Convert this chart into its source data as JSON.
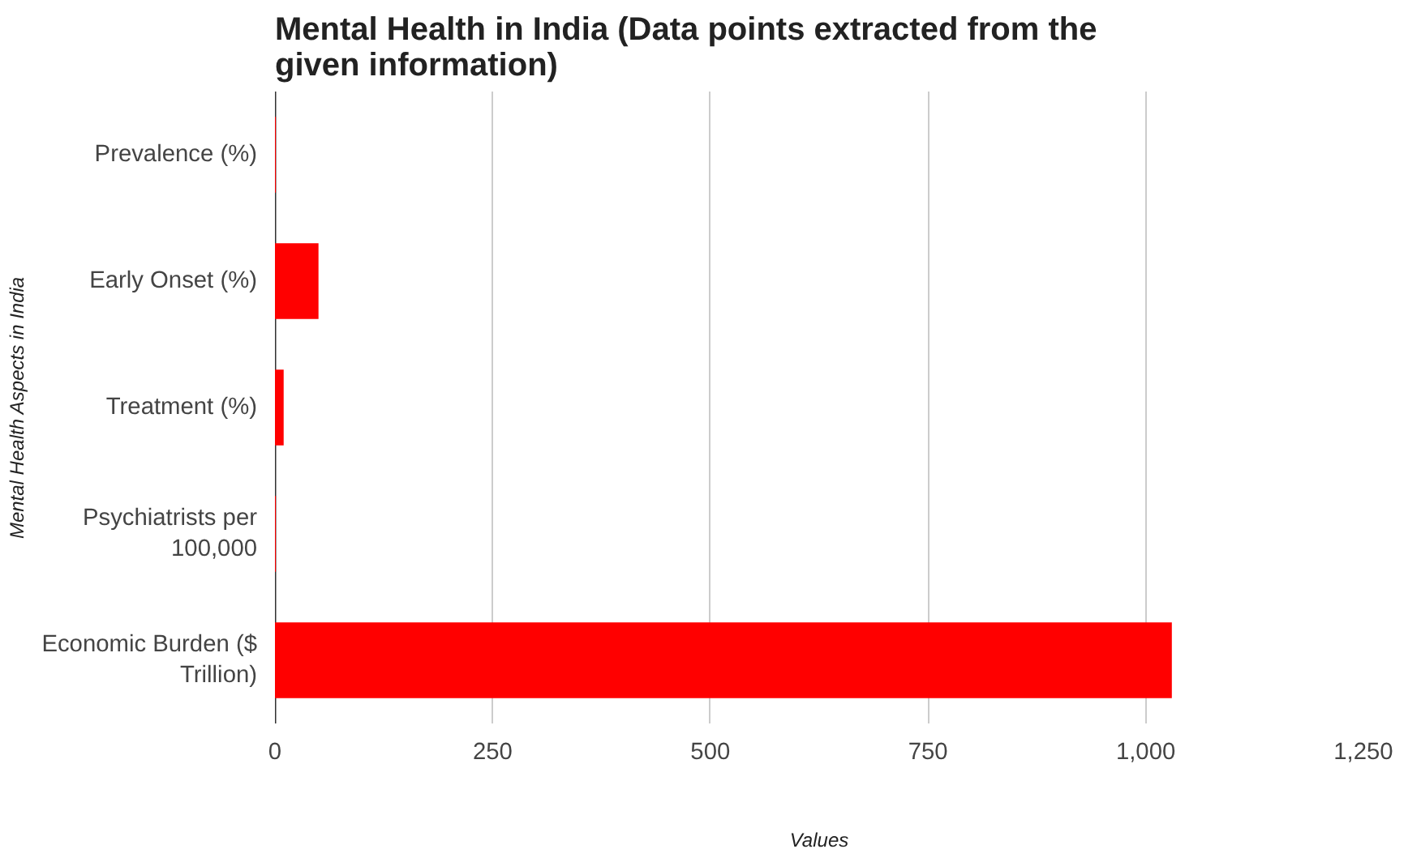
{
  "chart_data": {
    "type": "bar",
    "orientation": "horizontal",
    "title": "Mental Health in India (Data points extracted from the given information)",
    "xlabel": "Values",
    "ylabel": "Mental Health Aspects in India",
    "categories": [
      "Prevalence (%)",
      "Early Onset (%)",
      "Treatment (%)",
      "Psychiatrists per 100,000",
      "Economic Burden ($ Trillion)"
    ],
    "values": [
      1,
      50,
      10,
      1,
      1030
    ],
    "color": "#ff0000",
    "xlim": [
      0,
      1250
    ],
    "xticks": [
      0,
      250,
      500,
      750,
      {
        "value": 1000,
        "label": "1,000"
      },
      {
        "value": 1250,
        "label": "1,250"
      }
    ],
    "grid": "x"
  }
}
